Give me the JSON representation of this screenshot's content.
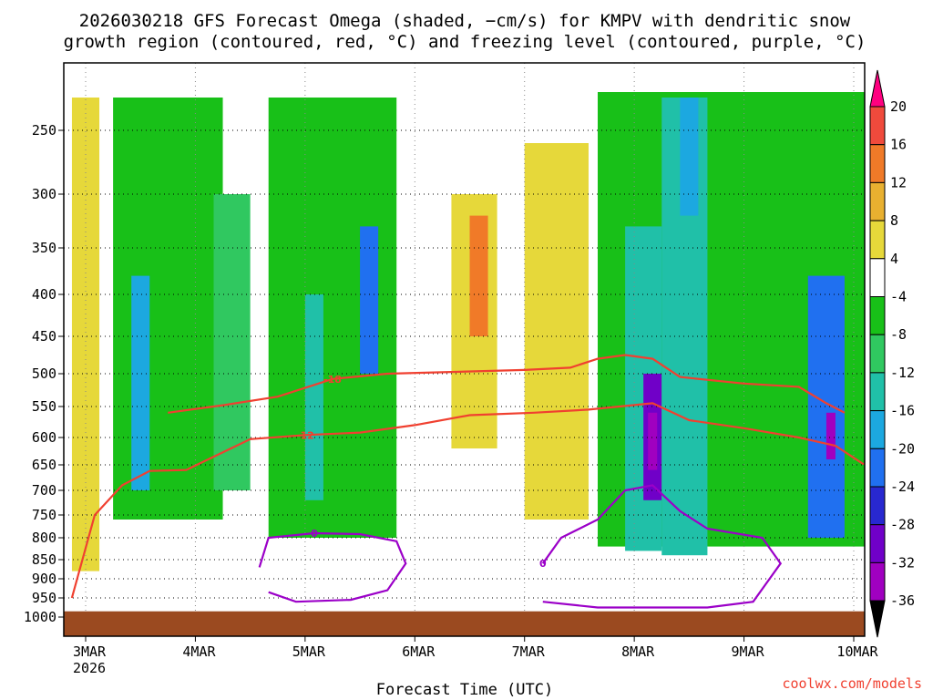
{
  "title_line1": "2026030218 GFS Forecast Omega (shaded, −cm/s) for KMPV with dendritic snow",
  "title_line2": "growth region (contoured, red, °C) and freezing level (contoured, purple, °C)",
  "credit": "coolwx.com/models",
  "colors": {
    "red_contour": "#f04030",
    "purple_contour": "#9b00c8",
    "terrain": "#9b4a20",
    "grid": "#000000"
  },
  "chart_data": {
    "type": "heatmap",
    "title": "2026030218 GFS Forecast Omega (shaded, −cm/s) for KMPV with dendritic snow growth region (contoured, red, °C) and freezing level (contoured, purple, °C)",
    "xlabel": "Forecast Time (UTC)",
    "ylabel": "",
    "x_ticks": [
      "3MAR",
      "4MAR",
      "5MAR",
      "6MAR",
      "7MAR",
      "8MAR",
      "9MAR",
      "10MAR"
    ],
    "x_tick_sub": "2026",
    "xlim_hours": [
      -3,
      174
    ],
    "y_ticks": [
      250,
      300,
      350,
      400,
      450,
      500,
      550,
      600,
      650,
      700,
      750,
      800,
      850,
      900,
      950,
      1000
    ],
    "ylim_hPa": [
      200,
      1015
    ],
    "y_scale": "pressure (log-like, inverted)",
    "grid": true,
    "colorbar": {
      "labels": [
        20,
        16,
        12,
        8,
        4,
        -4,
        -8,
        -12,
        -16,
        -20,
        -24,
        -28,
        -32,
        -36
      ],
      "colors": [
        "#ff0080",
        "#f04a3c",
        "#f07a28",
        "#e8b030",
        "#e6d83a",
        "#ffffff",
        "#18c018",
        "#30c860",
        "#20c0a8",
        "#1ca8e0",
        "#2070f0",
        "#2828d0",
        "#7000c8",
        "#a000c0",
        "#b0b0b0",
        "#000000"
      ]
    },
    "omega_bands": [
      {
        "start_hour": -3,
        "end_hour": 3,
        "bottom_hPa": 880,
        "top_hPa": 220,
        "value": 6
      },
      {
        "start_hour": 6,
        "end_hour": 30,
        "bottom_hPa": 760,
        "top_hPa": 220,
        "value": -8
      },
      {
        "start_hour": 10,
        "end_hour": 14,
        "bottom_hPa": 700,
        "top_hPa": 380,
        "value": -20
      },
      {
        "start_hour": 28,
        "end_hour": 36,
        "bottom_hPa": 700,
        "top_hPa": 300,
        "value": -12
      },
      {
        "start_hour": 40,
        "end_hour": 68,
        "bottom_hPa": 800,
        "top_hPa": 220,
        "value": -8
      },
      {
        "start_hour": 48,
        "end_hour": 52,
        "bottom_hPa": 720,
        "top_hPa": 400,
        "value": -16
      },
      {
        "start_hour": 60,
        "end_hour": 64,
        "bottom_hPa": 500,
        "top_hPa": 330,
        "value": -24
      },
      {
        "start_hour": 80,
        "end_hour": 90,
        "bottom_hPa": 620,
        "top_hPa": 300,
        "value": 6
      },
      {
        "start_hour": 84,
        "end_hour": 88,
        "bottom_hPa": 450,
        "top_hPa": 320,
        "value": 14
      },
      {
        "start_hour": 96,
        "end_hour": 110,
        "bottom_hPa": 760,
        "top_hPa": 260,
        "value": 5
      },
      {
        "start_hour": 112,
        "end_hour": 172,
        "bottom_hPa": 820,
        "top_hPa": 215,
        "value": -8
      },
      {
        "start_hour": 118,
        "end_hour": 126,
        "bottom_hPa": 830,
        "top_hPa": 330,
        "value": -14
      },
      {
        "start_hour": 122,
        "end_hour": 126,
        "bottom_hPa": 720,
        "top_hPa": 500,
        "value": -30
      },
      {
        "start_hour": 123,
        "end_hour": 125,
        "bottom_hPa": 660,
        "top_hPa": 560,
        "value": -34
      },
      {
        "start_hour": 126,
        "end_hour": 136,
        "bottom_hPa": 840,
        "top_hPa": 220,
        "value": -14
      },
      {
        "start_hour": 130,
        "end_hour": 134,
        "bottom_hPa": 320,
        "top_hPa": 220,
        "value": -20
      },
      {
        "start_hour": 158,
        "end_hour": 166,
        "bottom_hPa": 800,
        "top_hPa": 380,
        "value": -22
      },
      {
        "start_hour": 162,
        "end_hour": 164,
        "bottom_hPa": 640,
        "top_hPa": 560,
        "value": -34
      }
    ],
    "red_contours": [
      {
        "label": "-18",
        "label_hour": 54,
        "points": [
          [
            18,
            560
          ],
          [
            30,
            548
          ],
          [
            42,
            535
          ],
          [
            54,
            508
          ],
          [
            66,
            500
          ],
          [
            78,
            498
          ],
          [
            96,
            495
          ],
          [
            106,
            492
          ],
          [
            112,
            480
          ],
          [
            118,
            475
          ],
          [
            124,
            480
          ],
          [
            130,
            505
          ],
          [
            144,
            515
          ],
          [
            156,
            520
          ],
          [
            162,
            545
          ],
          [
            166,
            560
          ]
        ]
      },
      {
        "label": "-12",
        "label_hour": 54,
        "points": [
          [
            -3,
            950
          ],
          [
            2,
            750
          ],
          [
            8,
            690
          ],
          [
            14,
            662
          ],
          [
            22,
            660
          ],
          [
            36,
            603
          ],
          [
            48,
            596
          ],
          [
            60,
            592
          ],
          [
            72,
            580
          ],
          [
            84,
            564
          ],
          [
            98,
            560
          ],
          [
            110,
            555
          ],
          [
            124,
            545
          ],
          [
            132,
            572
          ],
          [
            144,
            585
          ],
          [
            156,
            600
          ],
          [
            164,
            615
          ],
          [
            170,
            648
          ],
          [
            174,
            648
          ]
        ]
      }
    ],
    "purple_contours": [
      {
        "label": "0",
        "label_hour": 52,
        "points": [
          [
            38,
            870
          ],
          [
            40,
            800
          ],
          [
            50,
            790
          ],
          [
            60,
            792
          ],
          [
            68,
            808
          ],
          [
            70,
            860
          ],
          [
            66,
            930
          ],
          [
            58,
            955
          ],
          [
            46,
            960
          ],
          [
            40,
            935
          ]
        ]
      },
      {
        "label": "0",
        "label_hour": 96,
        "points": [
          [
            100,
            860
          ],
          [
            104,
            800
          ],
          [
            112,
            760
          ],
          [
            118,
            700
          ],
          [
            124,
            690
          ],
          [
            130,
            742
          ],
          [
            136,
            780
          ],
          [
            148,
            800
          ],
          [
            152,
            860
          ],
          [
            146,
            960
          ],
          [
            136,
            975
          ],
          [
            112,
            975
          ],
          [
            100,
            960
          ]
        ]
      }
    ],
    "terrain_top_hPa": 985
  }
}
